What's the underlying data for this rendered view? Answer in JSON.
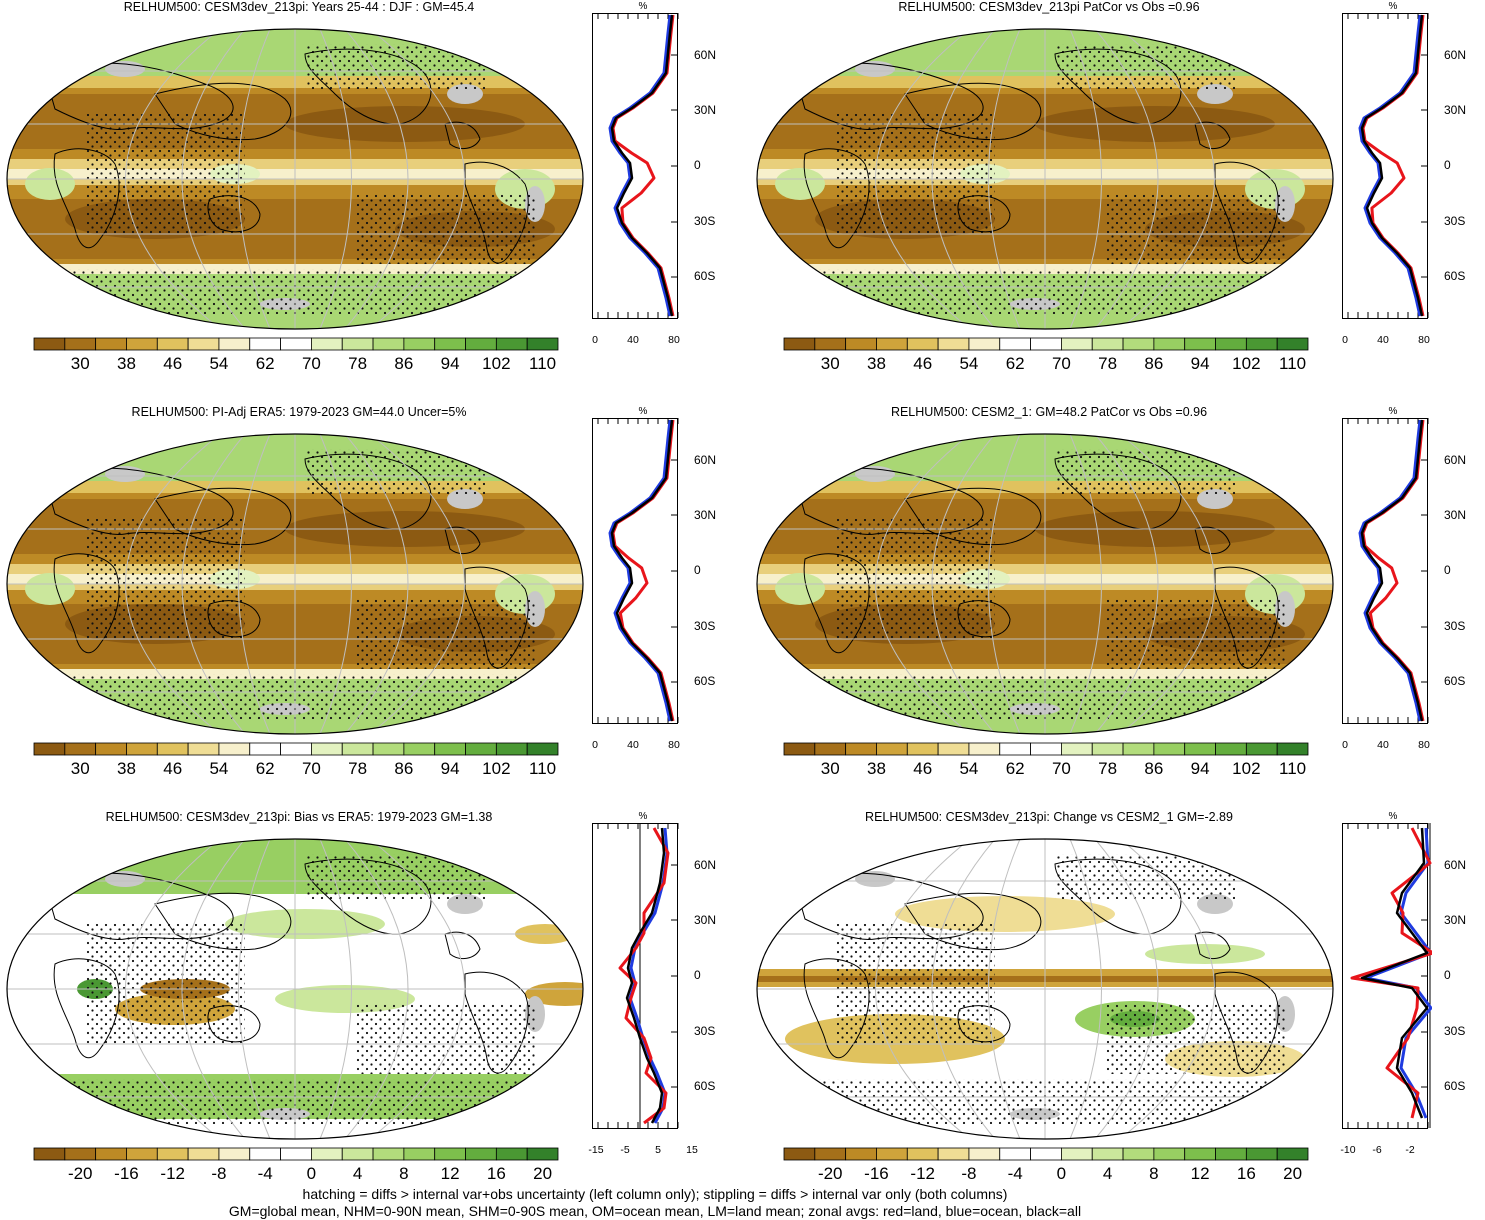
{
  "panels": [
    {
      "title": "RELHUM500: CESM3dev_213pi: Years 25-44 : DJF : GM=45.4",
      "kind": "abs",
      "cbar": [
        "30",
        "38",
        "46",
        "54",
        "62",
        "70",
        "78",
        "86",
        "94",
        "102",
        "110"
      ],
      "zonal_x": [
        "0",
        "40",
        "80"
      ],
      "zonal_unit": "%",
      "lat": [
        "60N",
        "30N",
        "0",
        "30S",
        "60S"
      ]
    },
    {
      "title": "RELHUM500: CESM3dev_213pi PatCor vs Obs =0.96",
      "kind": "abs",
      "cbar": [
        "30",
        "38",
        "46",
        "54",
        "62",
        "70",
        "78",
        "86",
        "94",
        "102",
        "110"
      ],
      "zonal_x": [
        "0",
        "40",
        "80"
      ],
      "zonal_unit": "%",
      "lat": [
        "60N",
        "30N",
        "0",
        "30S",
        "60S"
      ]
    },
    {
      "title": "RELHUM500: PI-Adj ERA5: 1979-2023 GM=44.0 Uncer=5%",
      "kind": "abs",
      "cbar": [
        "30",
        "38",
        "46",
        "54",
        "62",
        "70",
        "78",
        "86",
        "94",
        "102",
        "110"
      ],
      "zonal_x": [
        "0",
        "40",
        "80"
      ],
      "zonal_unit": "%",
      "lat": [
        "60N",
        "30N",
        "0",
        "30S",
        "60S"
      ]
    },
    {
      "title": "RELHUM500: CESM2_1: GM=48.2 PatCor vs Obs =0.96",
      "kind": "abs",
      "cbar": [
        "30",
        "38",
        "46",
        "54",
        "62",
        "70",
        "78",
        "86",
        "94",
        "102",
        "110"
      ],
      "zonal_x": [
        "0",
        "40",
        "80"
      ],
      "zonal_unit": "%",
      "lat": [
        "60N",
        "30N",
        "0",
        "30S",
        "60S"
      ]
    },
    {
      "title": "RELHUM500: CESM3dev_213pi: Bias vs ERA5: 1979-2023 GM=1.38",
      "kind": "diff",
      "cbar": [
        "-20",
        "-16",
        "-12",
        "-8",
        "-4",
        "0",
        "4",
        "8",
        "12",
        "16",
        "20"
      ],
      "zonal_x": [
        "-15",
        "-5",
        "5",
        "15"
      ],
      "zonal_unit": "%",
      "lat": [
        "60N",
        "30N",
        "0",
        "30S",
        "60S"
      ]
    },
    {
      "title": "RELHUM500: CESM3dev_213pi: Change vs CESM2_1 GM=-2.89",
      "kind": "diff",
      "cbar": [
        "-20",
        "-16",
        "-12",
        "-8",
        "-4",
        "0",
        "4",
        "8",
        "12",
        "16",
        "20"
      ],
      "zonal_x": [
        "-10",
        "-6",
        "-2"
      ],
      "zonal_unit": "%",
      "lat": [
        "60N",
        "30N",
        "0",
        "30S",
        "60S"
      ]
    }
  ],
  "footer": {
    "line1": "hatching = diffs > internal var+obs uncertainty (left column only); stippling = diffs > internal var only (both columns)",
    "line2": "GM=global mean, NHM=0-90N mean, SHM=0-90S mean, OM=ocean mean, LM=land mean; zonal avgs: red=land, blue=ocean, black=all"
  },
  "colors": {
    "abs_scale": [
      "#8c5a12",
      "#a5701a",
      "#bd8a25",
      "#cfa43b",
      "#e0c25e",
      "#efdd95",
      "#f7f0cc",
      "#ffffff",
      "#ffffff",
      "#e3f2c0",
      "#cbe79c",
      "#b2dc7c",
      "#98cf62",
      "#7dbf4c",
      "#63ad3e",
      "#4a9833",
      "#33812a"
    ],
    "diff_scale": [
      "#8c5a12",
      "#a5701a",
      "#bd8a25",
      "#cfa43b",
      "#e0c25e",
      "#efdd95",
      "#f7f0cc",
      "#ffffff",
      "#ffffff",
      "#e3f2c0",
      "#cbe79c",
      "#b2dc7c",
      "#98cf62",
      "#7dbf4c",
      "#63ad3e",
      "#4a9833",
      "#33812a"
    ],
    "land_line": "#e8151b",
    "ocean_line": "#1f3be0",
    "all_line": "#000000",
    "missing": "#c8c8c8"
  }
}
